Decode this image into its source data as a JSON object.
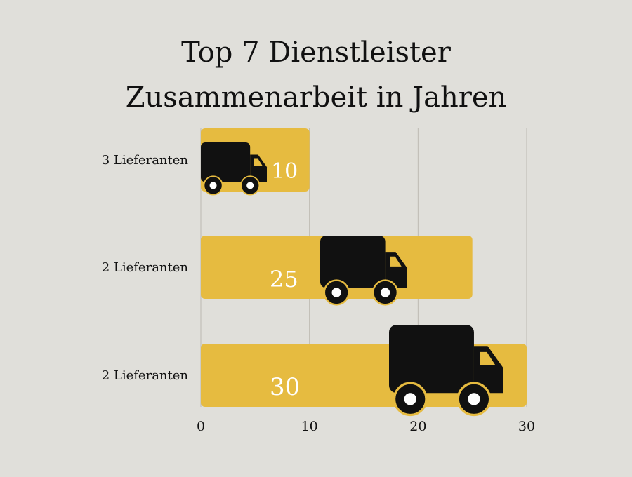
{
  "colors": {
    "background": "#e0dfda",
    "bar": "#e6bb40",
    "grid": "#bdbab2",
    "truck": "#111111",
    "value_text": "#ffffff"
  },
  "chart_data": {
    "type": "bar",
    "orientation": "horizontal",
    "title_lines": [
      "Top 7 Dienstleister",
      "Zusammenarbeit in Jahren"
    ],
    "categories": [
      "3 Lieferanten",
      "2 Lieferanten",
      "2 Lieferanten"
    ],
    "values": [
      10,
      25,
      30
    ],
    "xlim": [
      0,
      30
    ],
    "x_ticks": [
      0,
      10,
      20,
      30
    ],
    "grid": true,
    "bar_icon": "truck-icon"
  }
}
